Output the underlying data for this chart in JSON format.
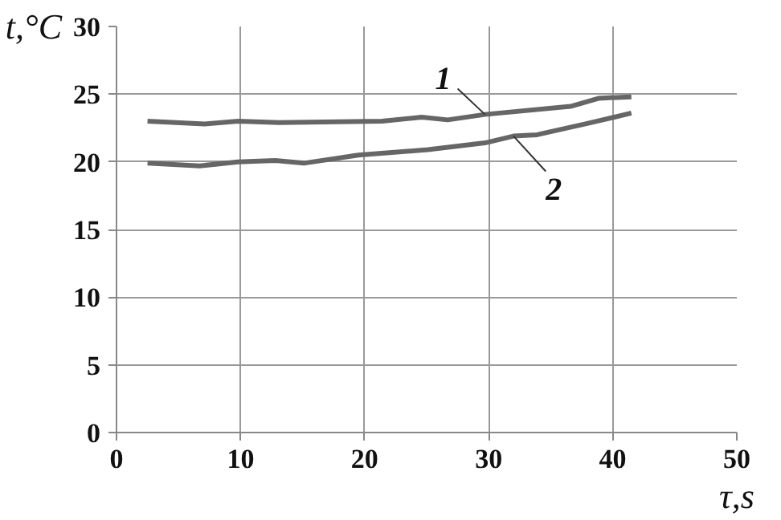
{
  "chart_data": {
    "type": "line",
    "xlabel": "τ,s",
    "ylabel": "t,°C",
    "xlim": [
      0,
      50
    ],
    "xticks": [
      0,
      10,
      20,
      30,
      40,
      50
    ],
    "ylim": [
      0,
      30
    ],
    "yticks": [
      0,
      5,
      10,
      15,
      20,
      25,
      30
    ],
    "grid": true,
    "line_style": "solid",
    "series": [
      {
        "name": "1",
        "color": "#666666",
        "x": [
          2.5,
          7.1,
          9.8,
          13.1,
          21.4,
          24.6,
          26.7,
          29.7,
          36.6,
          38.9,
          41.5
        ],
        "values": [
          23.0,
          22.8,
          23.0,
          22.9,
          23.0,
          23.3,
          23.1,
          23.5,
          24.1,
          24.7,
          24.8
        ]
      },
      {
        "name": "2",
        "color": "#666666",
        "x": [
          2.5,
          6.7,
          9.8,
          12.8,
          15.1,
          19.5,
          25.1,
          29.7,
          32.0,
          33.9,
          37.8,
          41.5
        ],
        "values": [
          19.9,
          19.7,
          20.0,
          20.1,
          19.9,
          20.5,
          20.9,
          21.4,
          21.9,
          22.0,
          22.8,
          23.6
        ]
      }
    ]
  }
}
